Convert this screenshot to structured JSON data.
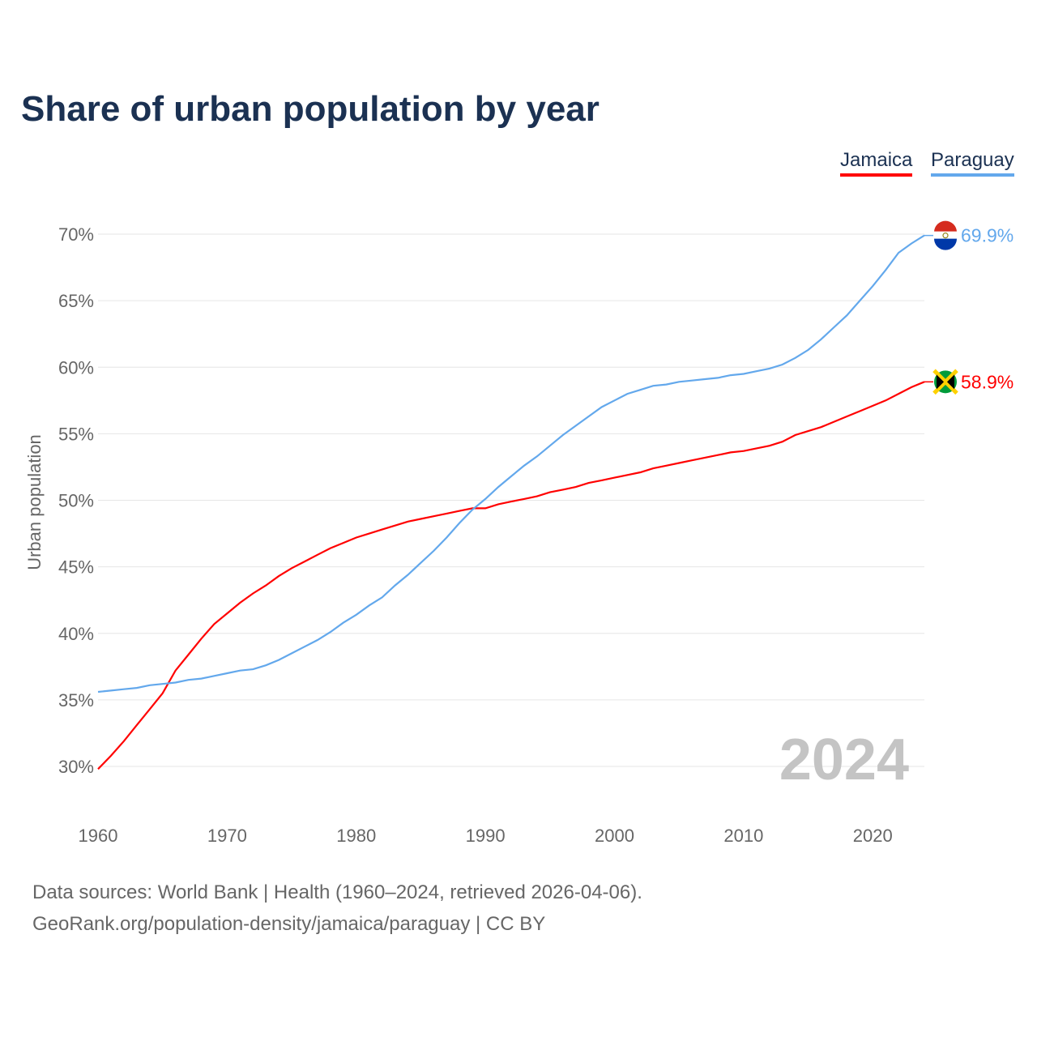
{
  "chart_data": {
    "type": "line",
    "title": "Share of urban population by year",
    "xlabel": "",
    "ylabel": "Urban population",
    "xlim": [
      1960,
      2024
    ],
    "ylim": [
      30,
      70
    ],
    "x_ticks": [
      "1960",
      "1970",
      "1980",
      "1990",
      "2000",
      "2010",
      "2020"
    ],
    "y_ticks": [
      "30%",
      "35%",
      "40%",
      "45%",
      "50%",
      "55%",
      "60%",
      "65%",
      "70%"
    ],
    "grid": true,
    "legend_placement": "top-right",
    "year_watermark": "2024",
    "x": [
      1960,
      1961,
      1962,
      1963,
      1964,
      1965,
      1966,
      1967,
      1968,
      1969,
      1970,
      1971,
      1972,
      1973,
      1974,
      1975,
      1976,
      1977,
      1978,
      1979,
      1980,
      1981,
      1982,
      1983,
      1984,
      1985,
      1986,
      1987,
      1988,
      1989,
      1990,
      1991,
      1992,
      1993,
      1994,
      1995,
      1996,
      1997,
      1998,
      1999,
      2000,
      2001,
      2002,
      2003,
      2004,
      2005,
      2006,
      2007,
      2008,
      2009,
      2010,
      2011,
      2012,
      2013,
      2014,
      2015,
      2016,
      2017,
      2018,
      2019,
      2020,
      2021,
      2022,
      2023,
      2024
    ],
    "series": [
      {
        "name": "Jamaica",
        "color": "#ff0000",
        "end_label": "58.9%",
        "values": [
          29.8,
          30.8,
          31.9,
          33.1,
          34.3,
          35.5,
          37.2,
          38.4,
          39.6,
          40.7,
          41.5,
          42.3,
          43.0,
          43.6,
          44.3,
          44.9,
          45.4,
          45.9,
          46.4,
          46.8,
          47.2,
          47.5,
          47.8,
          48.1,
          48.4,
          48.6,
          48.8,
          49.0,
          49.2,
          49.4,
          49.4,
          49.7,
          49.9,
          50.1,
          50.3,
          50.6,
          50.8,
          51.0,
          51.3,
          51.5,
          51.7,
          51.9,
          52.1,
          52.4,
          52.6,
          52.8,
          53.0,
          53.2,
          53.4,
          53.6,
          53.7,
          53.9,
          54.1,
          54.4,
          54.9,
          55.2,
          55.5,
          55.9,
          56.3,
          56.7,
          57.1,
          57.5,
          58.0,
          58.5,
          58.9
        ]
      },
      {
        "name": "Paraguay",
        "color": "#63a8ec",
        "end_label": "69.9%",
        "values": [
          35.6,
          35.7,
          35.8,
          35.9,
          36.1,
          36.2,
          36.3,
          36.5,
          36.6,
          36.8,
          37.0,
          37.2,
          37.3,
          37.6,
          38.0,
          38.5,
          39.0,
          39.5,
          40.1,
          40.8,
          41.4,
          42.1,
          42.7,
          43.6,
          44.4,
          45.3,
          46.2,
          47.2,
          48.3,
          49.3,
          50.1,
          51.0,
          51.8,
          52.6,
          53.3,
          54.1,
          54.9,
          55.6,
          56.3,
          57.0,
          57.5,
          58.0,
          58.3,
          58.6,
          58.7,
          58.9,
          59.0,
          59.1,
          59.2,
          59.4,
          59.5,
          59.7,
          59.9,
          60.2,
          60.7,
          61.3,
          62.1,
          63.0,
          63.9,
          65.0,
          66.1,
          67.3,
          68.6,
          69.3,
          69.9
        ]
      }
    ]
  },
  "source_line1": "Data sources: World Bank | Health (1960–2024, retrieved 2026-04-06).",
  "source_line2": "GeoRank.org/population-density/jamaica/paraguay | CC BY"
}
